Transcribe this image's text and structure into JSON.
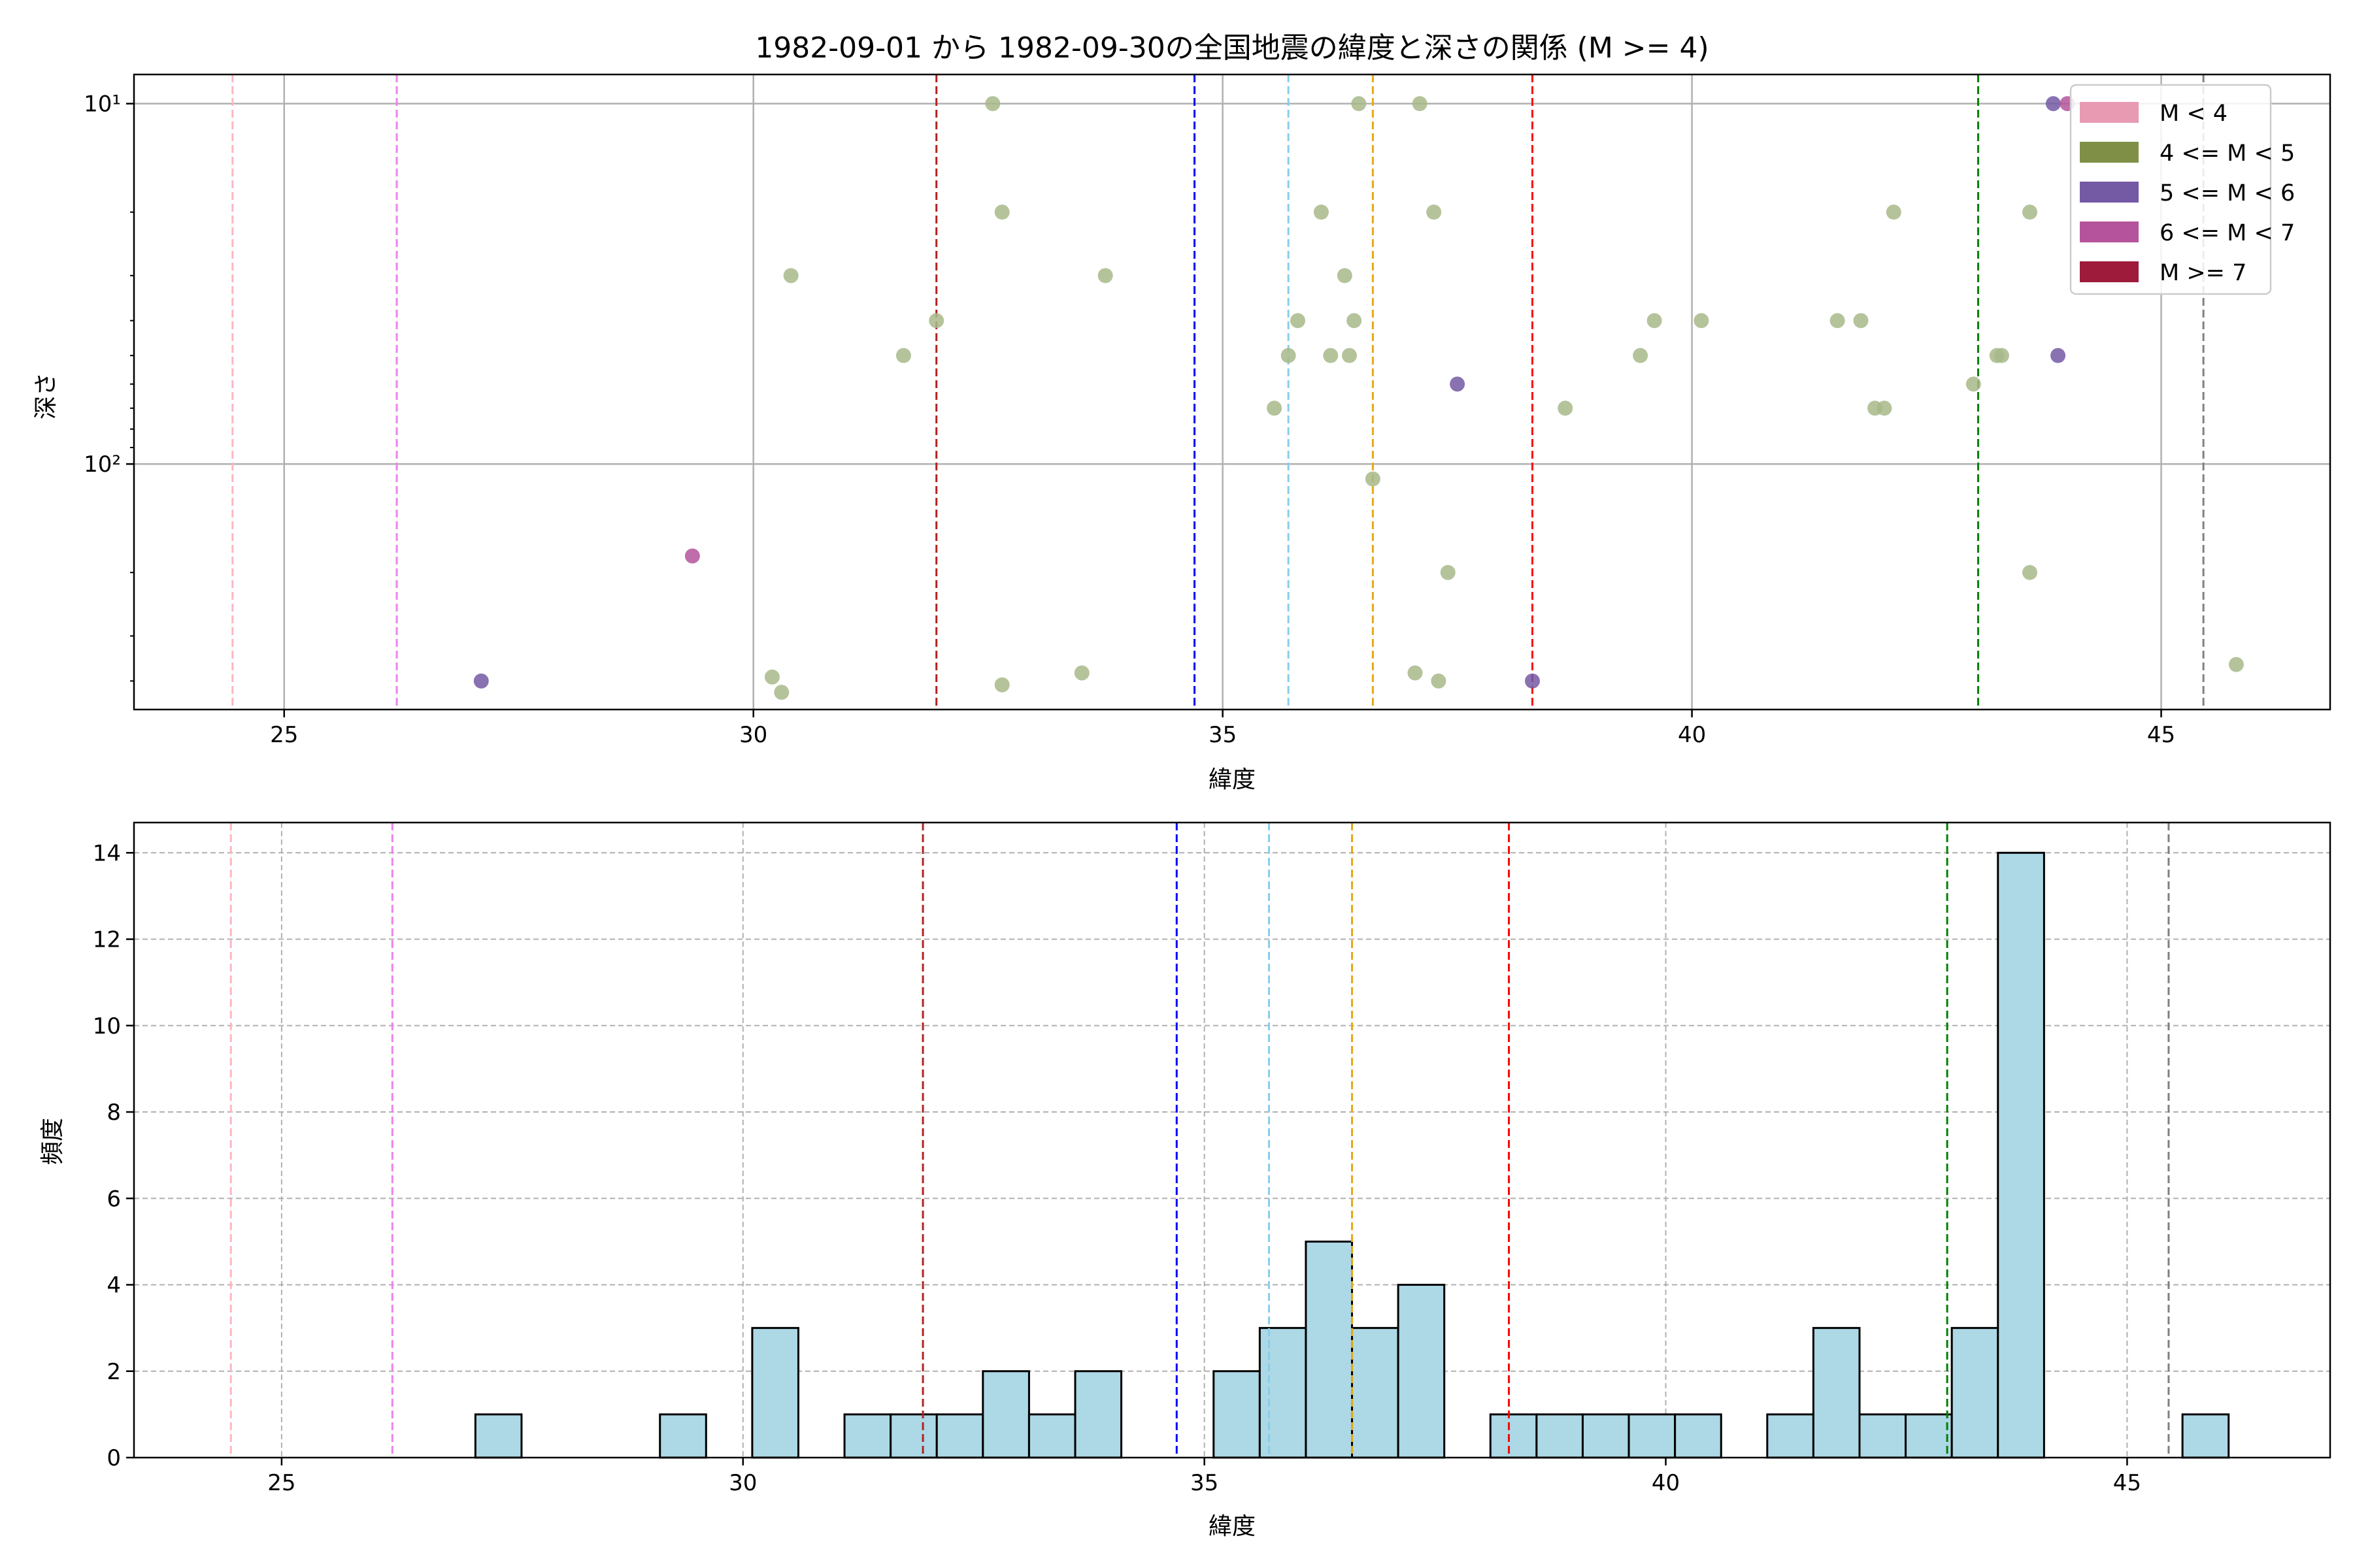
{
  "chart_data": [
    {
      "type": "scatter",
      "title": "1982-09-01 から 1982-09-30の全国地震の緯度と深さの関係 (M >= 4)",
      "xlabel": "緯度",
      "ylabel": "深さ",
      "xlim": [
        23.4,
        46.8
      ],
      "ylim": [
        480,
        8.3
      ],
      "y_scale": "log",
      "y_inverted": true,
      "x_ticks": [
        25,
        30,
        35,
        40,
        45
      ],
      "y_ticks": [
        10,
        100
      ],
      "y_tick_labels": [
        "10¹",
        "10²"
      ],
      "grid": true,
      "legend_position": "top-right",
      "legend": [
        {
          "label": "M < 4",
          "color": "#e89ab3"
        },
        {
          "label": "4 <= M < 5",
          "color": "#7f9046"
        },
        {
          "label": "5 <= M < 6",
          "color": "#7459a5"
        },
        {
          "label": "6 <= M < 7",
          "color": "#b5549c"
        },
        {
          "label": "M >= 7",
          "color": "#9e1b3c"
        }
      ],
      "series": [
        {
          "color": "#a8b88a",
          "points": [
            [
              30.2,
              390
            ],
            [
              30.3,
              430
            ],
            [
              30.4,
              30
            ],
            [
              31.6,
              50
            ],
            [
              31.95,
              40
            ],
            [
              32.55,
              10
            ],
            [
              32.65,
              20
            ],
            [
              32.65,
              410
            ],
            [
              33.5,
              380
            ],
            [
              33.75,
              30
            ],
            [
              35.55,
              70
            ],
            [
              35.7,
              50
            ],
            [
              35.8,
              40
            ],
            [
              36.05,
              20
            ],
            [
              36.15,
              50
            ],
            [
              36.3,
              30
            ],
            [
              36.35,
              50
            ],
            [
              36.4,
              40
            ],
            [
              36.45,
              10
            ],
            [
              36.6,
              110
            ],
            [
              37.05,
              380
            ],
            [
              37.1,
              10
            ],
            [
              37.25,
              20
            ],
            [
              37.3,
              400
            ],
            [
              37.4,
              200
            ],
            [
              38.65,
              70
            ],
            [
              39.45,
              50
            ],
            [
              39.6,
              40
            ],
            [
              40.1,
              40
            ],
            [
              41.55,
              40
            ],
            [
              41.8,
              40
            ],
            [
              41.95,
              70
            ],
            [
              42.05,
              70
            ],
            [
              42.15,
              20
            ],
            [
              43.0,
              60
            ],
            [
              43.25,
              50
            ],
            [
              43.3,
              50
            ],
            [
              43.6,
              20
            ],
            [
              43.6,
              200
            ],
            [
              45.8,
              360
            ]
          ]
        },
        {
          "color": "#7459a5",
          "points": [
            [
              27.1,
              400
            ],
            [
              37.5,
              60
            ],
            [
              38.3,
              400
            ],
            [
              43.85,
              10
            ],
            [
              43.9,
              50
            ]
          ]
        },
        {
          "color": "#b5549c",
          "points": [
            [
              29.35,
              180
            ],
            [
              44.0,
              10
            ]
          ]
        }
      ],
      "reference_lines": [
        {
          "x": 24.45,
          "color": "#ffb6c1"
        },
        {
          "x": 26.2,
          "color": "#ee82ee"
        },
        {
          "x": 31.95,
          "color": "#b22222"
        },
        {
          "x": 34.7,
          "color": "#0000ff"
        },
        {
          "x": 35.7,
          "color": "#87ceeb"
        },
        {
          "x": 36.6,
          "color": "#e6a817"
        },
        {
          "x": 38.3,
          "color": "#ff0000"
        },
        {
          "x": 43.05,
          "color": "#008000"
        },
        {
          "x": 45.45,
          "color": "#808080"
        }
      ]
    },
    {
      "type": "bar",
      "title": "",
      "xlabel": "緯度",
      "ylabel": "頻度",
      "xlim": [
        23.4,
        47.2
      ],
      "ylim": [
        0,
        14.7
      ],
      "x_ticks": [
        25,
        30,
        35,
        40,
        45
      ],
      "y_ticks": [
        0,
        2,
        4,
        6,
        8,
        10,
        12,
        14
      ],
      "grid": true,
      "bar_color": "#add8e6",
      "bin_width": 0.5,
      "bins": [
        [
          27.1,
          1
        ],
        [
          29.1,
          1
        ],
        [
          30.1,
          3
        ],
        [
          31.1,
          1
        ],
        [
          31.6,
          1
        ],
        [
          32.1,
          1
        ],
        [
          32.6,
          2
        ],
        [
          33.1,
          1
        ],
        [
          33.6,
          2
        ],
        [
          35.1,
          2
        ],
        [
          35.6,
          3
        ],
        [
          36.1,
          5
        ],
        [
          36.6,
          3
        ],
        [
          37.1,
          4
        ],
        [
          38.1,
          1
        ],
        [
          38.6,
          1
        ],
        [
          39.1,
          1
        ],
        [
          39.6,
          1
        ],
        [
          40.1,
          1
        ],
        [
          41.1,
          1
        ],
        [
          41.6,
          3
        ],
        [
          42.1,
          1
        ],
        [
          42.6,
          1
        ],
        [
          43.1,
          3
        ],
        [
          43.6,
          14
        ],
        [
          45.6,
          1
        ]
      ],
      "reference_lines": [
        {
          "x": 24.45,
          "color": "#ffb6c1"
        },
        {
          "x": 26.2,
          "color": "#ee82ee"
        },
        {
          "x": 31.95,
          "color": "#b22222"
        },
        {
          "x": 34.7,
          "color": "#0000ff"
        },
        {
          "x": 35.7,
          "color": "#87ceeb"
        },
        {
          "x": 36.6,
          "color": "#e6a817"
        },
        {
          "x": 38.3,
          "color": "#ff0000"
        },
        {
          "x": 43.05,
          "color": "#008000"
        },
        {
          "x": 45.45,
          "color": "#808080"
        }
      ]
    }
  ]
}
